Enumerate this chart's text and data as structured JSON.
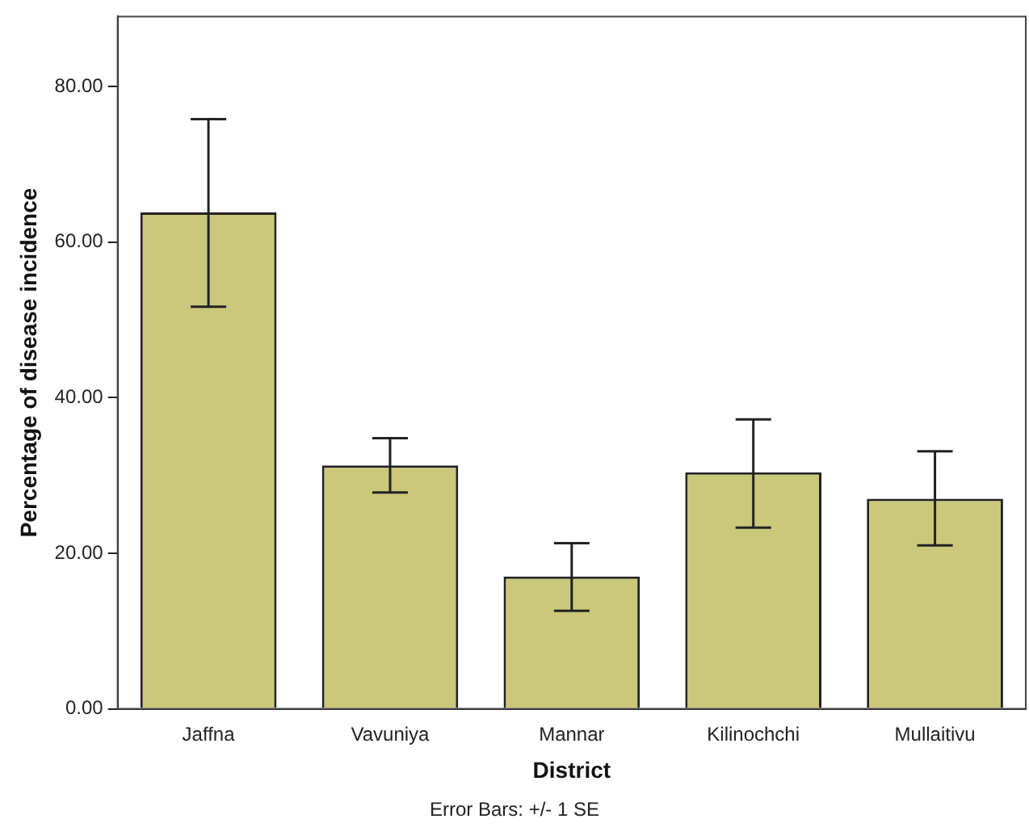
{
  "chart_data": {
    "type": "bar",
    "xlabel": "District",
    "ylabel": "Percentage of disease incidence",
    "categories": [
      "Jaffna",
      "Vavuniya",
      "Mannar",
      "Kilinochchi",
      "Mullaitivu"
    ],
    "values": [
      63.8,
      31.3,
      17.0,
      30.4,
      27.0
    ],
    "errors": [
      [
        51.7,
        75.8
      ],
      [
        27.8,
        34.8
      ],
      [
        12.6,
        21.3
      ],
      [
        23.3,
        37.2
      ],
      [
        21.0,
        33.1
      ]
    ],
    "color": "#c9c87b",
    "ylim": [
      0,
      89
    ],
    "yticks": [
      {
        "value": 0,
        "label": "0.00"
      },
      {
        "value": 20,
        "label": "20.00"
      },
      {
        "value": 40,
        "label": "40.00"
      },
      {
        "value": 60,
        "label": "60.00"
      },
      {
        "value": 80,
        "label": "80.00"
      }
    ],
    "grid": false,
    "legend": false,
    "annotations": [
      "Error Bars: +/- 1 SE"
    ]
  }
}
